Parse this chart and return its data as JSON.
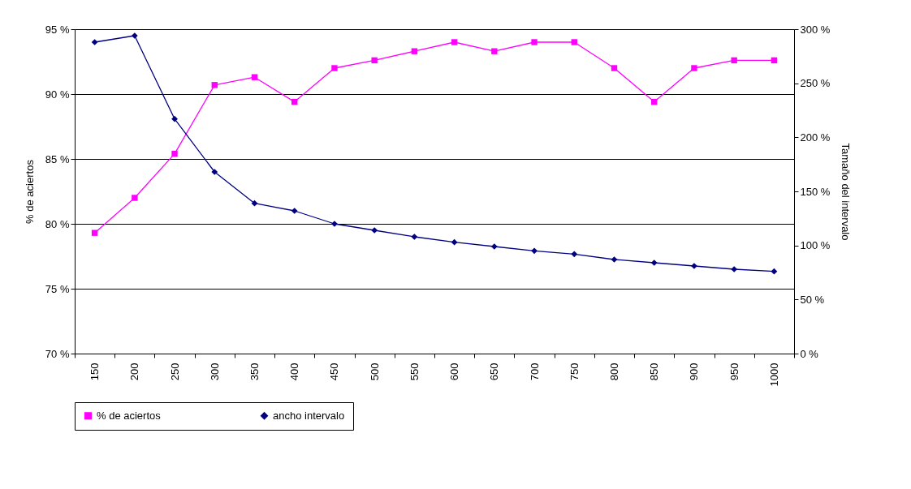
{
  "chart_data": {
    "type": "line",
    "ylabel": "% de aciertos",
    "y2label": "Tamaño del intervalo",
    "categories": [
      "150",
      "200",
      "250",
      "300",
      "350",
      "400",
      "450",
      "500",
      "550",
      "600",
      "650",
      "700",
      "750",
      "800",
      "850",
      "900",
      "950",
      "1000"
    ],
    "series": [
      {
        "name": "% de aciertos",
        "color": "#ff00ff",
        "marker": "square",
        "values": [
          79.3,
          82.0,
          85.4,
          90.7,
          91.3,
          89.4,
          92.0,
          92.6,
          93.3,
          94.0,
          93.3,
          94.0,
          94.0,
          92.0,
          89.4,
          92.0,
          92.6,
          92.6
        ]
      },
      {
        "name": "ancho intervalo",
        "color": "#000080",
        "marker": "diamond",
        "axis": "y2",
        "values": [
          288,
          294,
          217,
          168,
          139,
          132,
          120,
          114,
          108,
          103,
          99,
          95,
          92,
          87,
          84,
          81,
          78,
          76
        ]
      }
    ],
    "ylim": [
      70,
      95
    ],
    "yticks": [
      {
        "value": 70,
        "label": "70 %"
      },
      {
        "value": 75,
        "label": "75 %"
      },
      {
        "value": 80,
        "label": "80 %"
      },
      {
        "value": 85,
        "label": "85 %"
      },
      {
        "value": 90,
        "label": "90 %"
      },
      {
        "value": 95,
        "label": "95 %"
      }
    ],
    "y2lim": [
      0,
      300
    ],
    "y2ticks": [
      {
        "value": 0,
        "label": "0 %"
      },
      {
        "value": 50,
        "label": "50 %"
      },
      {
        "value": 100,
        "label": "100 %"
      },
      {
        "value": 150,
        "label": "150 %"
      },
      {
        "value": 200,
        "label": "200 %"
      },
      {
        "value": 250,
        "label": "250 %"
      },
      {
        "value": 300,
        "label": "300 %"
      }
    ],
    "grid": "y",
    "legend": "bottom",
    "line_style": "solid"
  }
}
